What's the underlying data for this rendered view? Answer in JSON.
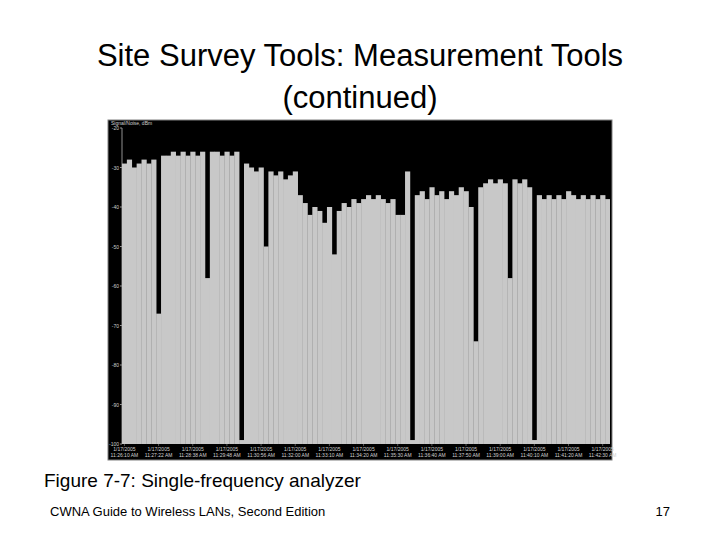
{
  "slide": {
    "title_lines": [
      "Site Survey Tools: Measurement Tools",
      "(continued)"
    ],
    "caption": "Figure 7-7: Single-frequency analyzer",
    "footer": "CWNA Guide to Wireless LANs, Second Edition",
    "page_number": 17
  },
  "chart_data": {
    "type": "bar",
    "y_label": "Signal/Noise, dBm",
    "color": "#c8c8c8",
    "grid": false,
    "ylim": [
      -100,
      -20
    ],
    "yticks": [
      -100,
      -90,
      -80,
      -70,
      -60,
      -50,
      -40,
      -30,
      -20
    ],
    "categories": [
      "1/17/2005 11:26:10 AM",
      null,
      null,
      null,
      null,
      null,
      null,
      "1/17/2005 11:27:22 AM",
      null,
      null,
      null,
      null,
      null,
      null,
      "1/17/2005 11:28:38 AM",
      null,
      null,
      null,
      null,
      null,
      null,
      "1/17/2005 11:29:48 AM",
      null,
      null,
      null,
      null,
      null,
      null,
      "1/17/2005 11:30:56 AM",
      null,
      null,
      null,
      null,
      null,
      null,
      "1/17/2005 11:32:00 AM",
      null,
      null,
      null,
      null,
      null,
      null,
      "1/17/2005 11:33:10 AM",
      null,
      null,
      null,
      null,
      null,
      null,
      "1/17/2005 11:34:20 AM",
      null,
      null,
      null,
      null,
      null,
      null,
      "1/17/2005 11:35:30 AM",
      null,
      null,
      null,
      null,
      null,
      null,
      "1/17/2005 11:36:40 AM",
      null,
      null,
      null,
      null,
      null,
      null,
      "1/17/2005 11:37:50 AM",
      null,
      null,
      null,
      null,
      null,
      null,
      "1/17/2005 11:39:00 AM",
      null,
      null,
      null,
      null,
      null,
      null,
      "1/17/2005 11:40:10 AM",
      null,
      null,
      null,
      null,
      null,
      null,
      "1/17/2005 11:41:20 AM",
      null,
      null,
      null,
      null,
      null,
      null,
      "1/17/2005 11:42:30 AM",
      null
    ],
    "values": [
      -29,
      -28,
      -30,
      -29,
      -28,
      -29,
      -28,
      -67,
      -27,
      -27,
      -26,
      -27,
      -26,
      -27,
      -26,
      -27,
      -26,
      -58,
      -26,
      -26,
      -27,
      -26,
      -27,
      -26,
      -99,
      -29,
      -30,
      -31,
      -30,
      -50,
      -31,
      -32,
      -31,
      -33,
      -32,
      -31,
      -37,
      -39,
      -42,
      -40,
      -41,
      -44,
      -40,
      -52,
      -41,
      -39,
      -40,
      -38,
      -39,
      -38,
      -37,
      -38,
      -37,
      -38,
      -39,
      -38,
      -42,
      -42,
      -31,
      -99,
      -37,
      -36,
      -38,
      -35,
      -37,
      -36,
      -38,
      -36,
      -37,
      -35,
      -36,
      -40,
      -74,
      -35,
      -34,
      -33,
      -34,
      -33,
      -34,
      -58,
      -33,
      -34,
      -33,
      -35,
      -99,
      -37,
      -38,
      -37,
      -38,
      -37,
      -38,
      -36,
      -37,
      -38,
      -37,
      -38,
      -37,
      -38,
      -37,
      -38
    ]
  }
}
